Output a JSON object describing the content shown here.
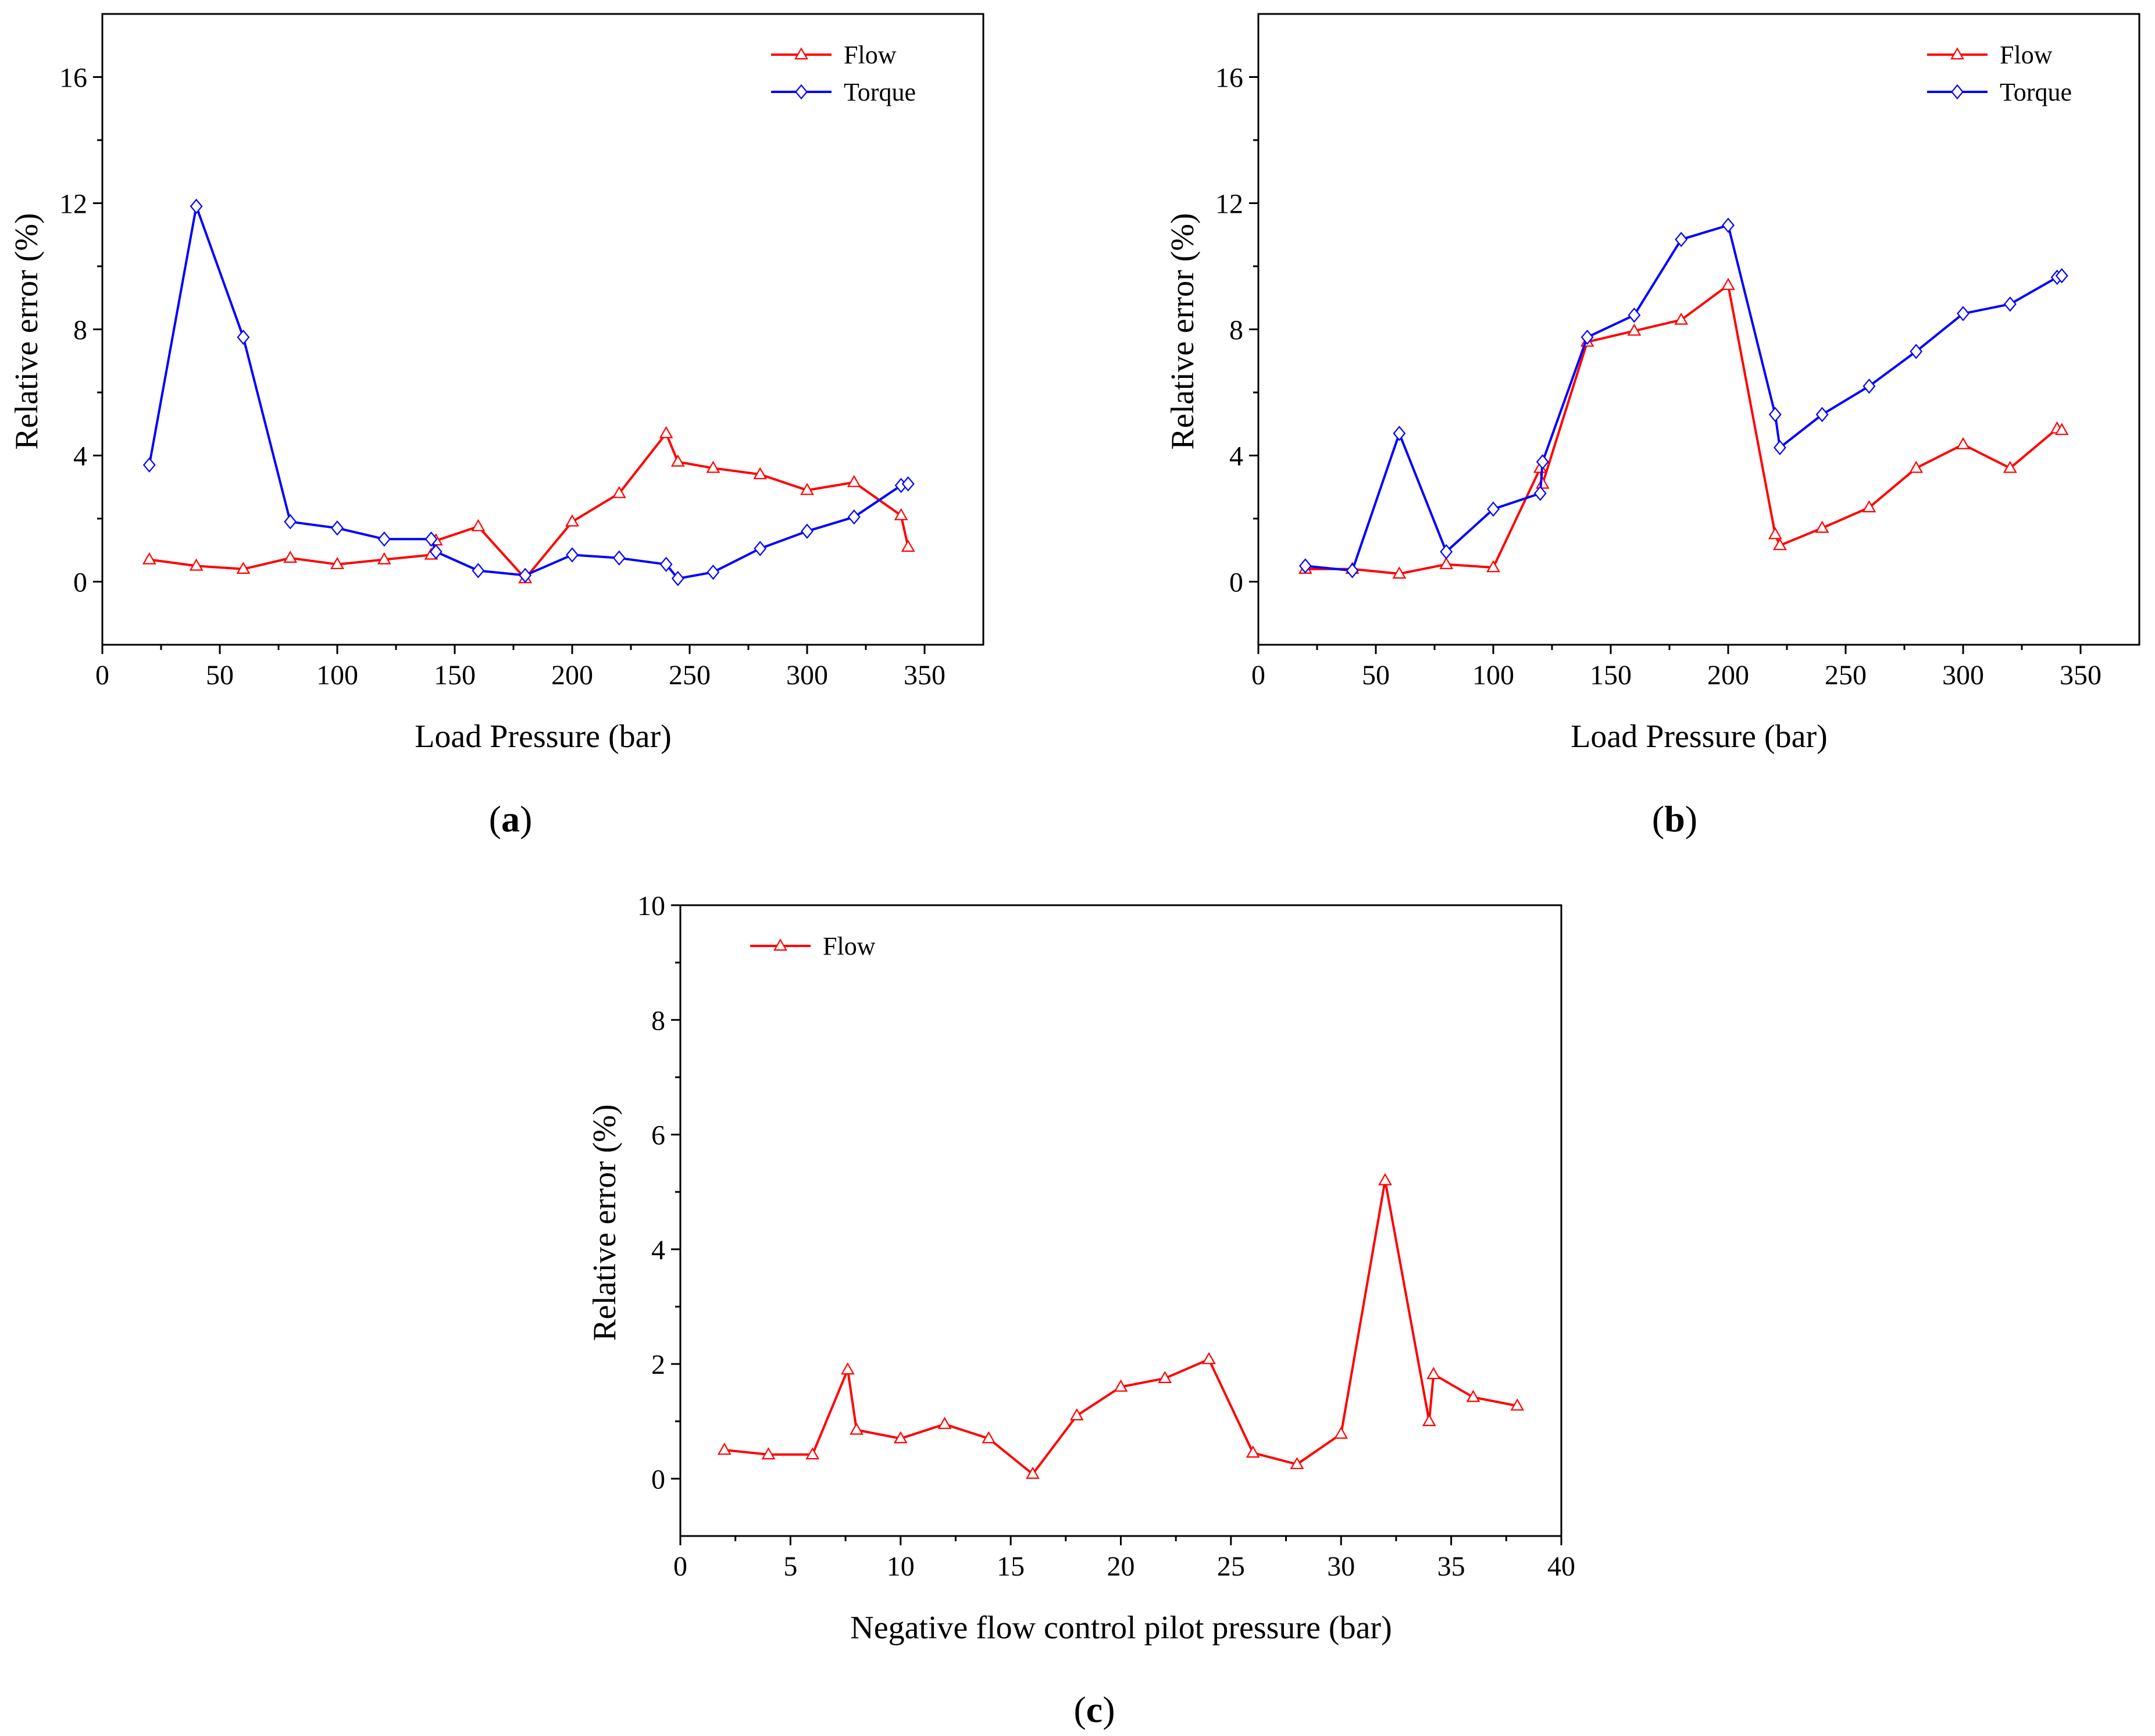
{
  "figure": {
    "panels": [
      "(a)",
      "(b)",
      "(c)"
    ]
  },
  "chart_data": [
    {
      "id": "a",
      "type": "line",
      "panel_label": "a",
      "title": "",
      "xlabel": "Load Pressure (bar)",
      "ylabel": "Relative error (%)",
      "xlim": [
        0,
        375
      ],
      "ylim": [
        -2,
        18
      ],
      "xticks": [
        0,
        50,
        100,
        150,
        200,
        250,
        300,
        350
      ],
      "yticks": [
        0,
        4,
        8,
        12,
        16
      ],
      "legend_position": "top-right",
      "series": [
        {
          "name": "Flow",
          "color": "#ff0000",
          "marker": "triangle",
          "x": [
            20,
            40,
            60,
            80,
            100,
            120,
            140,
            142,
            160,
            180,
            200,
            220,
            240,
            245,
            260,
            280,
            300,
            320,
            340,
            343
          ],
          "y": [
            0.7,
            0.5,
            0.4,
            0.75,
            0.55,
            0.7,
            0.85,
            1.3,
            1.75,
            0.1,
            1.9,
            2.8,
            4.7,
            3.8,
            3.6,
            3.4,
            2.9,
            3.15,
            2.1,
            1.1
          ]
        },
        {
          "name": "Torque",
          "color": "#0000ff",
          "marker": "diamond",
          "x": [
            20,
            40,
            60,
            80,
            100,
            120,
            140,
            142,
            160,
            180,
            200,
            220,
            240,
            245,
            260,
            280,
            300,
            320,
            340,
            343
          ],
          "y": [
            3.7,
            11.9,
            7.75,
            1.9,
            1.7,
            1.35,
            1.35,
            0.95,
            0.35,
            0.2,
            0.85,
            0.75,
            0.55,
            0.1,
            0.3,
            1.05,
            1.6,
            2.05,
            3.05,
            3.1
          ]
        }
      ]
    },
    {
      "id": "b",
      "type": "line",
      "panel_label": "b",
      "title": "",
      "xlabel": "Load Pressure (bar)",
      "ylabel": "Relative error (%)",
      "xlim": [
        0,
        375
      ],
      "ylim": [
        -2,
        18
      ],
      "xticks": [
        0,
        50,
        100,
        150,
        200,
        250,
        300,
        350
      ],
      "yticks": [
        0,
        4,
        8,
        12,
        16
      ],
      "legend_position": "top-right",
      "series": [
        {
          "name": "Flow",
          "color": "#ff0000",
          "marker": "triangle",
          "x": [
            20,
            40,
            60,
            80,
            100,
            120,
            121,
            140,
            160,
            180,
            200,
            220,
            222,
            240,
            260,
            280,
            300,
            320,
            340,
            342
          ],
          "y": [
            0.4,
            0.4,
            0.25,
            0.55,
            0.45,
            3.6,
            3.1,
            7.6,
            7.95,
            8.3,
            9.4,
            1.5,
            1.15,
            1.7,
            2.35,
            3.6,
            4.35,
            3.6,
            4.85,
            4.8
          ]
        },
        {
          "name": "Torque",
          "color": "#0000ff",
          "marker": "diamond",
          "x": [
            20,
            40,
            60,
            80,
            100,
            120,
            121,
            140,
            160,
            180,
            200,
            220,
            222,
            240,
            260,
            280,
            300,
            320,
            340,
            342
          ],
          "y": [
            0.5,
            0.35,
            4.7,
            0.95,
            2.3,
            2.8,
            3.8,
            7.75,
            8.45,
            10.85,
            11.3,
            5.3,
            4.25,
            5.3,
            6.2,
            7.3,
            8.5,
            8.8,
            9.65,
            9.7
          ]
        }
      ]
    },
    {
      "id": "c",
      "type": "line",
      "panel_label": "c",
      "title": "",
      "xlabel": "Negative flow control pilot pressure (bar)",
      "ylabel": "Relative error (%)",
      "xlim": [
        0,
        40
      ],
      "ylim": [
        -1,
        10
      ],
      "xticks": [
        0,
        5,
        10,
        15,
        20,
        25,
        30,
        35,
        40
      ],
      "yticks": [
        0,
        2,
        4,
        6,
        8,
        10
      ],
      "legend_position": "top-left",
      "series": [
        {
          "name": "Flow",
          "color": "#ff0000",
          "marker": "triangle",
          "x": [
            2,
            4,
            6,
            7.6,
            8,
            10,
            12,
            14,
            16,
            18,
            20,
            22,
            24,
            26,
            28,
            30,
            32,
            34,
            34.2,
            36,
            38
          ],
          "y": [
            0.5,
            0.42,
            0.42,
            1.9,
            0.85,
            0.7,
            0.95,
            0.7,
            0.08,
            1.1,
            1.6,
            1.75,
            2.08,
            0.45,
            0.25,
            0.78,
            5.2,
            1.0,
            1.82,
            1.42,
            1.27
          ]
        }
      ]
    }
  ]
}
